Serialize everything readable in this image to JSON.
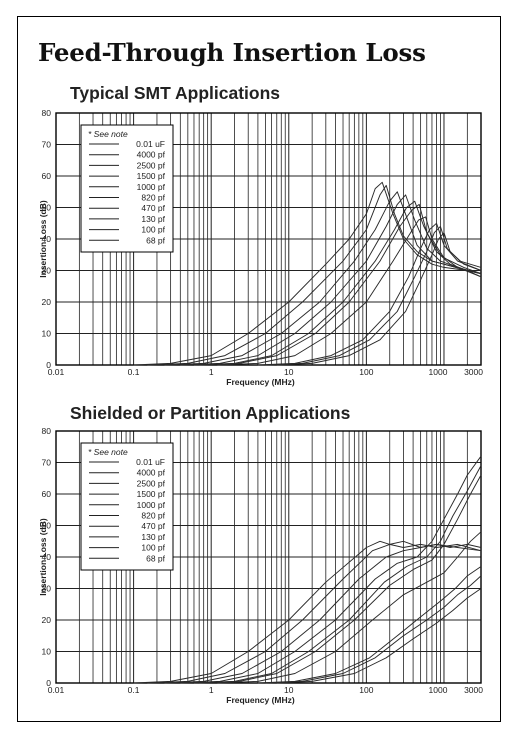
{
  "page": {
    "title": "Feed-Through Insertion Loss"
  },
  "chart_data": [
    {
      "type": "line",
      "title": "Typical SMT Applications",
      "xlabel": "Frequency (MHz)",
      "ylabel": "Insertion Loss (dB)",
      "xscale": "log",
      "xlim": [
        0.01,
        3000
      ],
      "ylim": [
        0,
        80
      ],
      "xticks": [
        "0.01",
        "0.1",
        "1",
        "10",
        "100",
        "1000",
        "3000"
      ],
      "yticks": [
        "0",
        "10",
        "20",
        "30",
        "40",
        "50",
        "60",
        "70",
        "80"
      ],
      "grid": true,
      "legend": {
        "placement": "top-left",
        "note": "* See note",
        "entries": [
          "0.01 uF",
          "4000  pf",
          "2500  pf",
          "1500  pf",
          "1000  pf",
          "820  pf",
          "470  pf",
          "130  pf",
          "100  pf",
          "68  pf"
        ]
      },
      "series": [
        {
          "name": "0.01 uF",
          "x": [
            0.1,
            0.3,
            1,
            3,
            10,
            30,
            60,
            100,
            130,
            160,
            220,
            300,
            450,
            700,
            1000,
            2000,
            3000
          ],
          "y": [
            0,
            0.5,
            3,
            10,
            20,
            32,
            40,
            48,
            56,
            58,
            48,
            40,
            35,
            32,
            31,
            30,
            29
          ]
        },
        {
          "name": "4000  pf",
          "x": [
            0.15,
            0.5,
            1.5,
            5,
            15,
            50,
            100,
            150,
            180,
            230,
            300,
            450,
            700,
            1000,
            2000,
            3000
          ],
          "y": [
            0,
            0.5,
            3,
            10,
            20,
            33,
            43,
            54,
            57,
            48,
            41,
            36,
            33,
            32,
            30,
            29
          ]
        },
        {
          "name": "2500  pf",
          "x": [
            0.25,
            0.8,
            2.5,
            8,
            25,
            70,
            130,
            200,
            250,
            330,
            450,
            700,
            1000,
            2000,
            3000
          ],
          "y": [
            0,
            0.5,
            3,
            10,
            20,
            33,
            43,
            52,
            55,
            47,
            38,
            33,
            32,
            30,
            29
          ]
        },
        {
          "name": "1500  pf",
          "x": [
            0.4,
            1.3,
            4,
            12,
            35,
            100,
            180,
            250,
            320,
            420,
            600,
            900,
            1500,
            3000
          ],
          "y": [
            0,
            0.5,
            3,
            10,
            20,
            33,
            44,
            51,
            54,
            46,
            37,
            33,
            31,
            29
          ]
        },
        {
          "name": "1000  pf",
          "x": [
            0.6,
            2,
            6,
            18,
            50,
            130,
            230,
            330,
            420,
            550,
            800,
            1200,
            2000,
            3000
          ],
          "y": [
            0,
            0.5,
            3,
            10,
            20,
            33,
            43,
            50,
            52,
            44,
            36,
            32,
            30,
            28
          ]
        },
        {
          "name": "820  pf",
          "x": [
            0.7,
            2.3,
            7,
            22,
            60,
            150,
            270,
            380,
            480,
            600,
            900,
            1500,
            3000
          ],
          "y": [
            0,
            0.5,
            3,
            10,
            20,
            33,
            44,
            49,
            51,
            42,
            35,
            31,
            28
          ]
        },
        {
          "name": "470  pf",
          "x": [
            1.2,
            4,
            12,
            35,
            100,
            220,
            350,
            470,
            580,
            700,
            1000,
            1800,
            3000
          ],
          "y": [
            0,
            0.5,
            3,
            10,
            20,
            33,
            41,
            46,
            47,
            40,
            34,
            31,
            29
          ]
        },
        {
          "name": "130  pf",
          "x": [
            4,
            12,
            35,
            90,
            200,
            350,
            500,
            650,
            800,
            1000,
            1500,
            3000
          ],
          "y": [
            0,
            0.5,
            3,
            8,
            17,
            28,
            37,
            43,
            45,
            38,
            33,
            30
          ]
        },
        {
          "name": "100  pf",
          "x": [
            5,
            15,
            45,
            110,
            250,
            420,
            600,
            750,
            900,
            1100,
            1600,
            3000
          ],
          "y": [
            0,
            0.5,
            3,
            8,
            17,
            28,
            36,
            42,
            44,
            37,
            33,
            31
          ]
        },
        {
          "name": "68  pf",
          "x": [
            7,
            20,
            60,
            150,
            320,
            500,
            700,
            850,
            1000,
            1200,
            1800,
            3000
          ],
          "y": [
            0,
            0.5,
            3,
            8,
            17,
            27,
            35,
            40,
            42,
            36,
            32,
            30
          ]
        }
      ]
    },
    {
      "type": "line",
      "title": "Shielded or Partition Applications",
      "xlabel": "Frequency (MHz)",
      "ylabel": "Insertion Loss (dB)",
      "xscale": "log",
      "xlim": [
        0.01,
        3000
      ],
      "ylim": [
        0,
        80
      ],
      "xticks": [
        "0.01",
        "0.1",
        "1",
        "10",
        "100",
        "1000",
        "3000"
      ],
      "yticks": [
        "0",
        "10",
        "20",
        "30",
        "40",
        "50",
        "60",
        "70",
        "80"
      ],
      "grid": true,
      "legend": {
        "placement": "top-left",
        "note": "* See note",
        "entries": [
          "0.01 uF",
          "4000  pf",
          "2500  pf",
          "1500  pf",
          "1000  pf",
          "820  pf",
          "470  pf",
          "130  pf",
          "100  pf",
          "68  pf"
        ]
      },
      "series": [
        {
          "name": "0.01 uF",
          "x": [
            0.1,
            0.3,
            1,
            3,
            10,
            30,
            100,
            150,
            200,
            300,
            500,
            800,
            1200,
            2000,
            3000
          ],
          "y": [
            0,
            0.5,
            3,
            10,
            20,
            32,
            43,
            45,
            44,
            45,
            43,
            44,
            43,
            44,
            43
          ]
        },
        {
          "name": "4000  pf",
          "x": [
            0.15,
            0.5,
            1.5,
            5,
            15,
            50,
            120,
            200,
            300,
            500,
            800,
            1500,
            3000
          ],
          "y": [
            0,
            0.5,
            3,
            10,
            20,
            33,
            42,
            44,
            43,
            44,
            43,
            44,
            42
          ]
        },
        {
          "name": "2500  pf",
          "x": [
            0.25,
            0.8,
            2.5,
            8,
            25,
            80,
            180,
            300,
            500,
            800,
            1500,
            3000
          ],
          "y": [
            0,
            0.5,
            3,
            10,
            20,
            33,
            40,
            42,
            43,
            44,
            43,
            42
          ]
        },
        {
          "name": "1500  pf",
          "x": [
            0.4,
            1.3,
            4,
            12,
            40,
            130,
            250,
            450,
            700,
            1000,
            1500,
            2000,
            3000
          ],
          "y": [
            0,
            0.5,
            3,
            10,
            20,
            33,
            38,
            40,
            45,
            52,
            60,
            66,
            72
          ]
        },
        {
          "name": "1000  pf",
          "x": [
            0.6,
            2,
            6,
            18,
            60,
            170,
            330,
            600,
            900,
            1300,
            2000,
            3000
          ],
          "y": [
            0,
            0.5,
            3,
            10,
            20,
            32,
            37,
            40,
            45,
            53,
            61,
            69
          ]
        },
        {
          "name": "820  pf",
          "x": [
            0.7,
            2.3,
            7,
            22,
            70,
            200,
            400,
            700,
            1000,
            1500,
            2200,
            3000
          ],
          "y": [
            0,
            0.5,
            3,
            10,
            20,
            31,
            36,
            39,
            44,
            52,
            60,
            66
          ]
        },
        {
          "name": "470  pf",
          "x": [
            1.2,
            4,
            12,
            40,
            120,
            300,
            600,
            1000,
            1500,
            2200,
            3000
          ],
          "y": [
            0,
            0.5,
            3,
            10,
            20,
            28,
            32,
            35,
            40,
            45,
            48
          ]
        },
        {
          "name": "130  pf",
          "x": [
            4,
            12,
            40,
            110,
            250,
            500,
            900,
            1400,
            2000,
            3000
          ],
          "y": [
            0,
            0.5,
            3,
            8,
            15,
            21,
            26,
            30,
            34,
            37
          ]
        },
        {
          "name": "100  pf",
          "x": [
            5,
            15,
            50,
            130,
            300,
            600,
            1000,
            1500,
            2200,
            3000
          ],
          "y": [
            0,
            0.5,
            3,
            8,
            15,
            20,
            24,
            28,
            31,
            34
          ]
        },
        {
          "name": "68  pf",
          "x": [
            7,
            20,
            70,
            180,
            400,
            800,
            1300,
            2000,
            3000
          ],
          "y": [
            0,
            0.5,
            3,
            8,
            14,
            19,
            23,
            27,
            30
          ]
        }
      ]
    }
  ]
}
